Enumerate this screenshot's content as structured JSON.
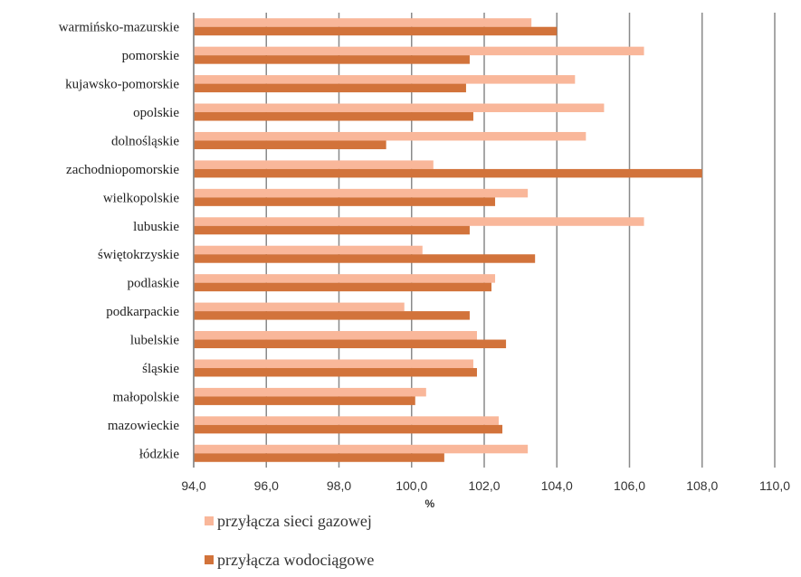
{
  "chart_data": {
    "type": "bar",
    "orientation": "horizontal",
    "xlabel": "%",
    "xlim": [
      94,
      110
    ],
    "x_ticks": [
      "94,0",
      "96,0",
      "98,0",
      "100,0",
      "102,0",
      "104,0",
      "106,0",
      "108,0",
      "110,0"
    ],
    "grid": "vertical",
    "legend_position": "bottom-left",
    "categories": [
      "warmińsko-mazurskie",
      "pomorskie",
      "kujawsko-pomorskie",
      "opolskie",
      "dolnośląskie",
      "zachodniopomorskie",
      "wielkopolskie",
      "lubuskie",
      "świętokrzyskie",
      "podlaskie",
      "podkarpackie",
      "lubelskie",
      "śląskie",
      "małopolskie",
      "mazowieckie",
      "łódzkie"
    ],
    "series": [
      {
        "name": "przyłącza sieci gazowej",
        "color": "#f9b79a",
        "values": [
          103.3,
          106.4,
          104.5,
          105.3,
          104.8,
          100.6,
          103.2,
          106.4,
          100.3,
          102.3,
          99.8,
          101.8,
          101.7,
          100.4,
          102.4,
          103.2
        ]
      },
      {
        "name": "przyłącza wodociągowe",
        "color": "#d2733b",
        "values": [
          104.0,
          101.6,
          101.5,
          101.7,
          99.3,
          108.0,
          102.3,
          101.6,
          103.4,
          102.2,
          101.6,
          102.6,
          101.8,
          100.1,
          102.5,
          100.9
        ]
      }
    ]
  }
}
